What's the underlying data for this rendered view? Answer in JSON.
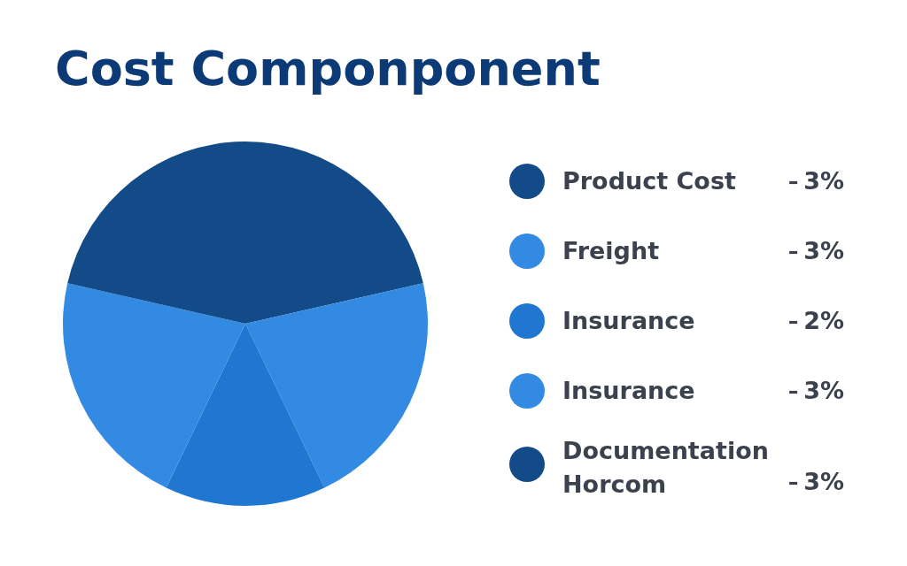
{
  "chart_data": {
    "type": "pie",
    "title": "Cost Componponent",
    "categories": [
      "Product Cost",
      "Freight",
      "Insurance",
      "Insurance",
      "Documentation Horcom"
    ],
    "values": [
      3,
      3,
      2,
      3,
      3
    ],
    "value_labels": [
      "3%",
      "3%",
      "2%",
      "3%",
      "3%"
    ],
    "colors": [
      "#134a88",
      "#338ae3",
      "#1f77d2",
      "#338ae3",
      "#134a88"
    ],
    "legend": "right"
  }
}
